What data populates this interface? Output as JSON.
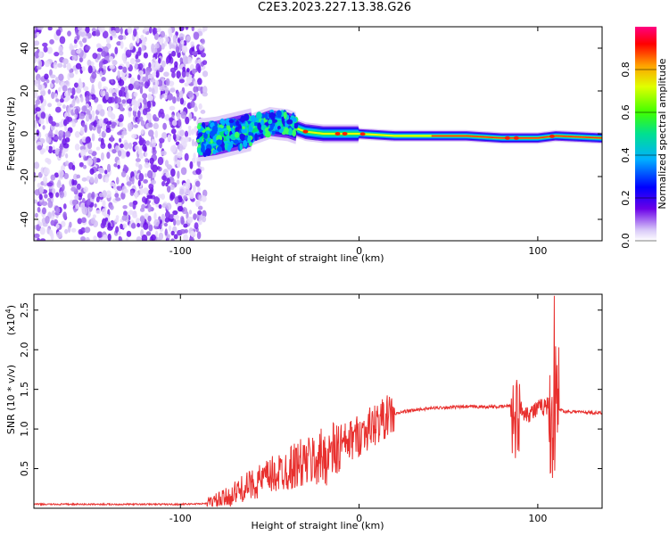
{
  "title": "C2E3.2023.227.13.38.G26",
  "chart_data": [
    {
      "type": "heatmap",
      "xlabel": "Height of straight line (km)",
      "ylabel": "Frequency (Hz)",
      "xlim": [
        -182,
        136
      ],
      "ylim": [
        -50,
        50
      ],
      "x_ticks": [
        "-100",
        "0",
        "100"
      ],
      "y_ticks": [
        "-40",
        "-20",
        "0",
        "20",
        "40"
      ],
      "grid": false,
      "noise_region_x": [
        -182,
        -90
      ],
      "signal_track": {
        "x": [
          -90,
          -80,
          -70,
          -60,
          -50,
          -40,
          -30,
          -20,
          -10,
          0,
          20,
          40,
          60,
          80,
          100,
          110,
          136
        ],
        "y": [
          -3,
          -2,
          0,
          2,
          5,
          4,
          1,
          0,
          0,
          0,
          -1,
          -1,
          -1,
          -2,
          -2,
          -1,
          -2
        ]
      },
      "colorbar": {
        "label": "Normalized spectral amplitude",
        "range": [
          0,
          1
        ],
        "ticks": [
          "0.0",
          "0.2",
          "0.4",
          "0.6",
          "0.8"
        ]
      }
    },
    {
      "type": "line",
      "xlabel": "Height of straight line (km)",
      "ylabel": "SNR (10 * v/v)",
      "y_multiplier_label": "(x10",
      "y_multiplier_exp": "4",
      "xlim": [
        -182,
        136
      ],
      "ylim": [
        0,
        2.7
      ],
      "x_ticks": [
        "-100",
        "0",
        "100"
      ],
      "y_ticks": [
        "0.5",
        "1.0",
        "1.5",
        "2.0",
        "2.5"
      ],
      "color": "#e8302e",
      "series": [
        {
          "x": [
            -182,
            -100,
            -85,
            -75,
            -65,
            -55,
            -45,
            -35,
            -25,
            -15,
            -5,
            5,
            15,
            25,
            35,
            45,
            60,
            80,
            85,
            87,
            90,
            95,
            100,
            105,
            108,
            110,
            112,
            115,
            120,
            136
          ],
          "y": [
            0.05,
            0.05,
            0.06,
            0.12,
            0.25,
            0.35,
            0.45,
            0.55,
            0.6,
            0.7,
            0.85,
            1.0,
            1.15,
            1.22,
            1.25,
            1.27,
            1.28,
            1.28,
            1.3,
            1.1,
            1.25,
            1.2,
            1.25,
            1.3,
            1.2,
            1.3,
            1.25,
            1.22,
            1.22,
            1.2
          ]
        }
      ]
    }
  ]
}
